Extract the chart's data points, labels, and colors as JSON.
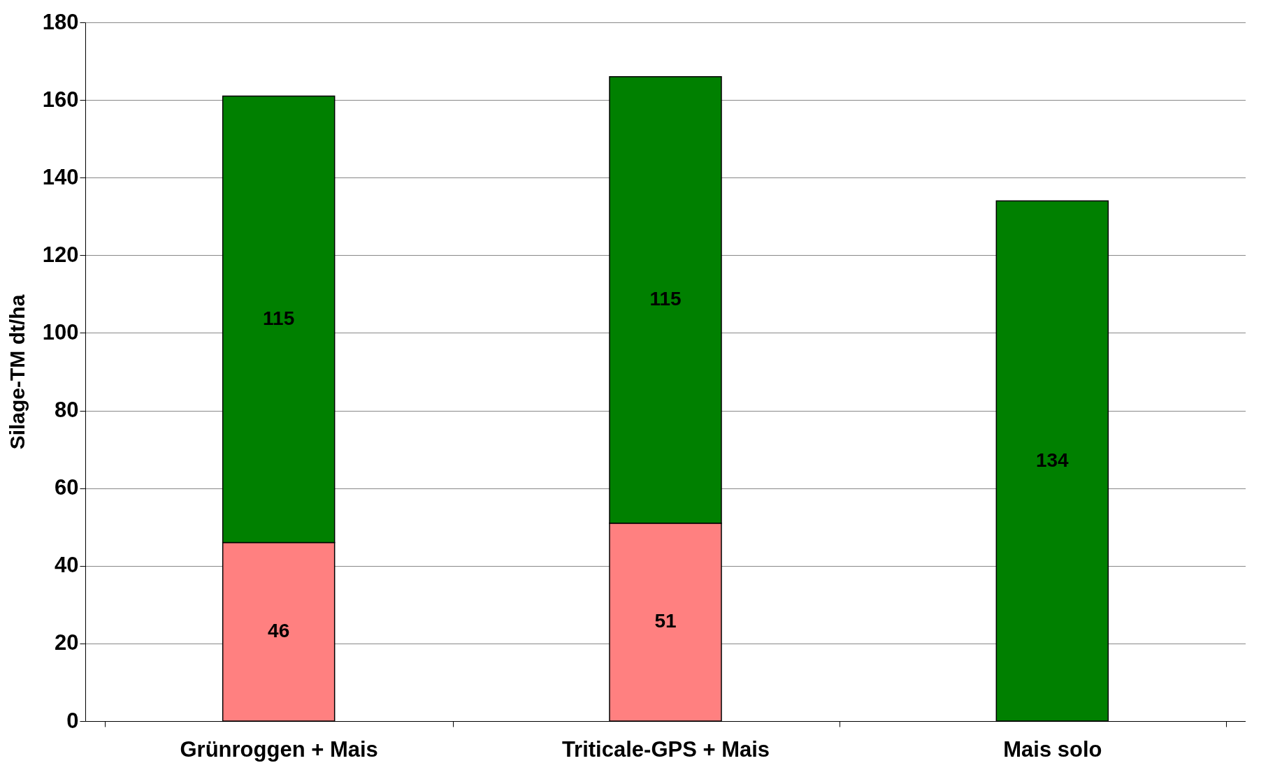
{
  "chart_data": {
    "type": "bar",
    "stacked": true,
    "ylabel": "Silage-TM dt/ha",
    "categories": [
      "Grünroggen + Mais",
      "Triticale-GPS + Mais",
      "Mais solo"
    ],
    "series": [
      {
        "color": "#ff8080",
        "values": [
          46,
          51,
          null
        ]
      },
      {
        "color": "#008000",
        "values": [
          115,
          115,
          134
        ]
      }
    ],
    "ylim": [
      0,
      180
    ],
    "yticks": [
      0,
      20,
      40,
      60,
      80,
      100,
      120,
      140,
      160,
      180
    ],
    "grid": "y",
    "data_labels": true
  }
}
